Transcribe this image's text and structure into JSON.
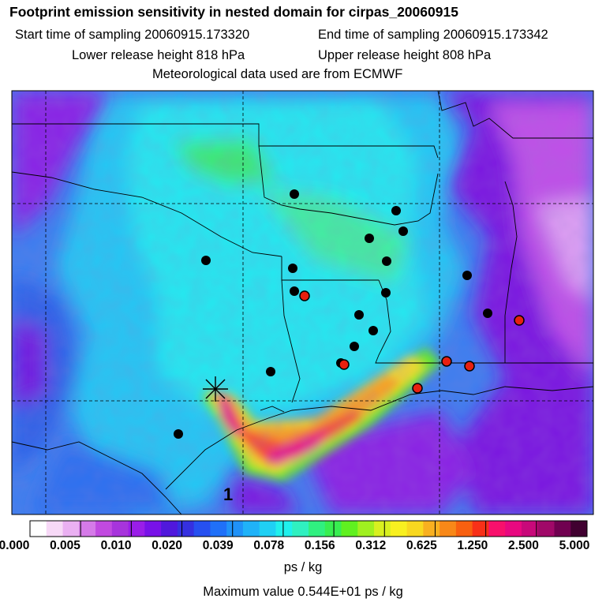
{
  "header": {
    "title": "Footprint emission sensitivity in nested domain for cirpas_20060915",
    "start_label": "Start time of sampling 20060915.173320",
    "end_label": "End time of sampling 20060915.173342",
    "lower_label": "Lower release height  818 hPa",
    "upper_label": "Upper release height  808 hPa",
    "met_label": "Meteorological data used are from ECMWF"
  },
  "map": {
    "release_marker_label": "1",
    "station_colors": {
      "black": "#000000",
      "red": "#e8200f"
    }
  },
  "colorbar": {
    "tick_labels": [
      "0.000",
      "0.005",
      "0.010",
      "0.020",
      "0.039",
      "0.078",
      "0.156",
      "0.312",
      "0.625",
      "1.250",
      "2.500",
      "5.000"
    ],
    "colors": [
      "#ffffff",
      "#f7d9f7",
      "#eab0f2",
      "#d57ae8",
      "#c14ae0",
      "#a734dc",
      "#9a1ee8",
      "#7812e8",
      "#5018dc",
      "#3530e0",
      "#2650f0",
      "#2070f8",
      "#2092f8",
      "#20b2f8",
      "#20d0f4",
      "#20f0ec",
      "#30f0c0",
      "#30f080",
      "#38ee50",
      "#60f020",
      "#a0f020",
      "#d8f020",
      "#f8f020",
      "#f8d820",
      "#f8b020",
      "#f88818",
      "#f86010",
      "#f83018",
      "#f8106c",
      "#e80880",
      "#c8087a",
      "#a00868",
      "#700050",
      "#400030"
    ],
    "units": "ps / kg",
    "max_label": "Maximum value  0.544E+01 ps / kg"
  }
}
